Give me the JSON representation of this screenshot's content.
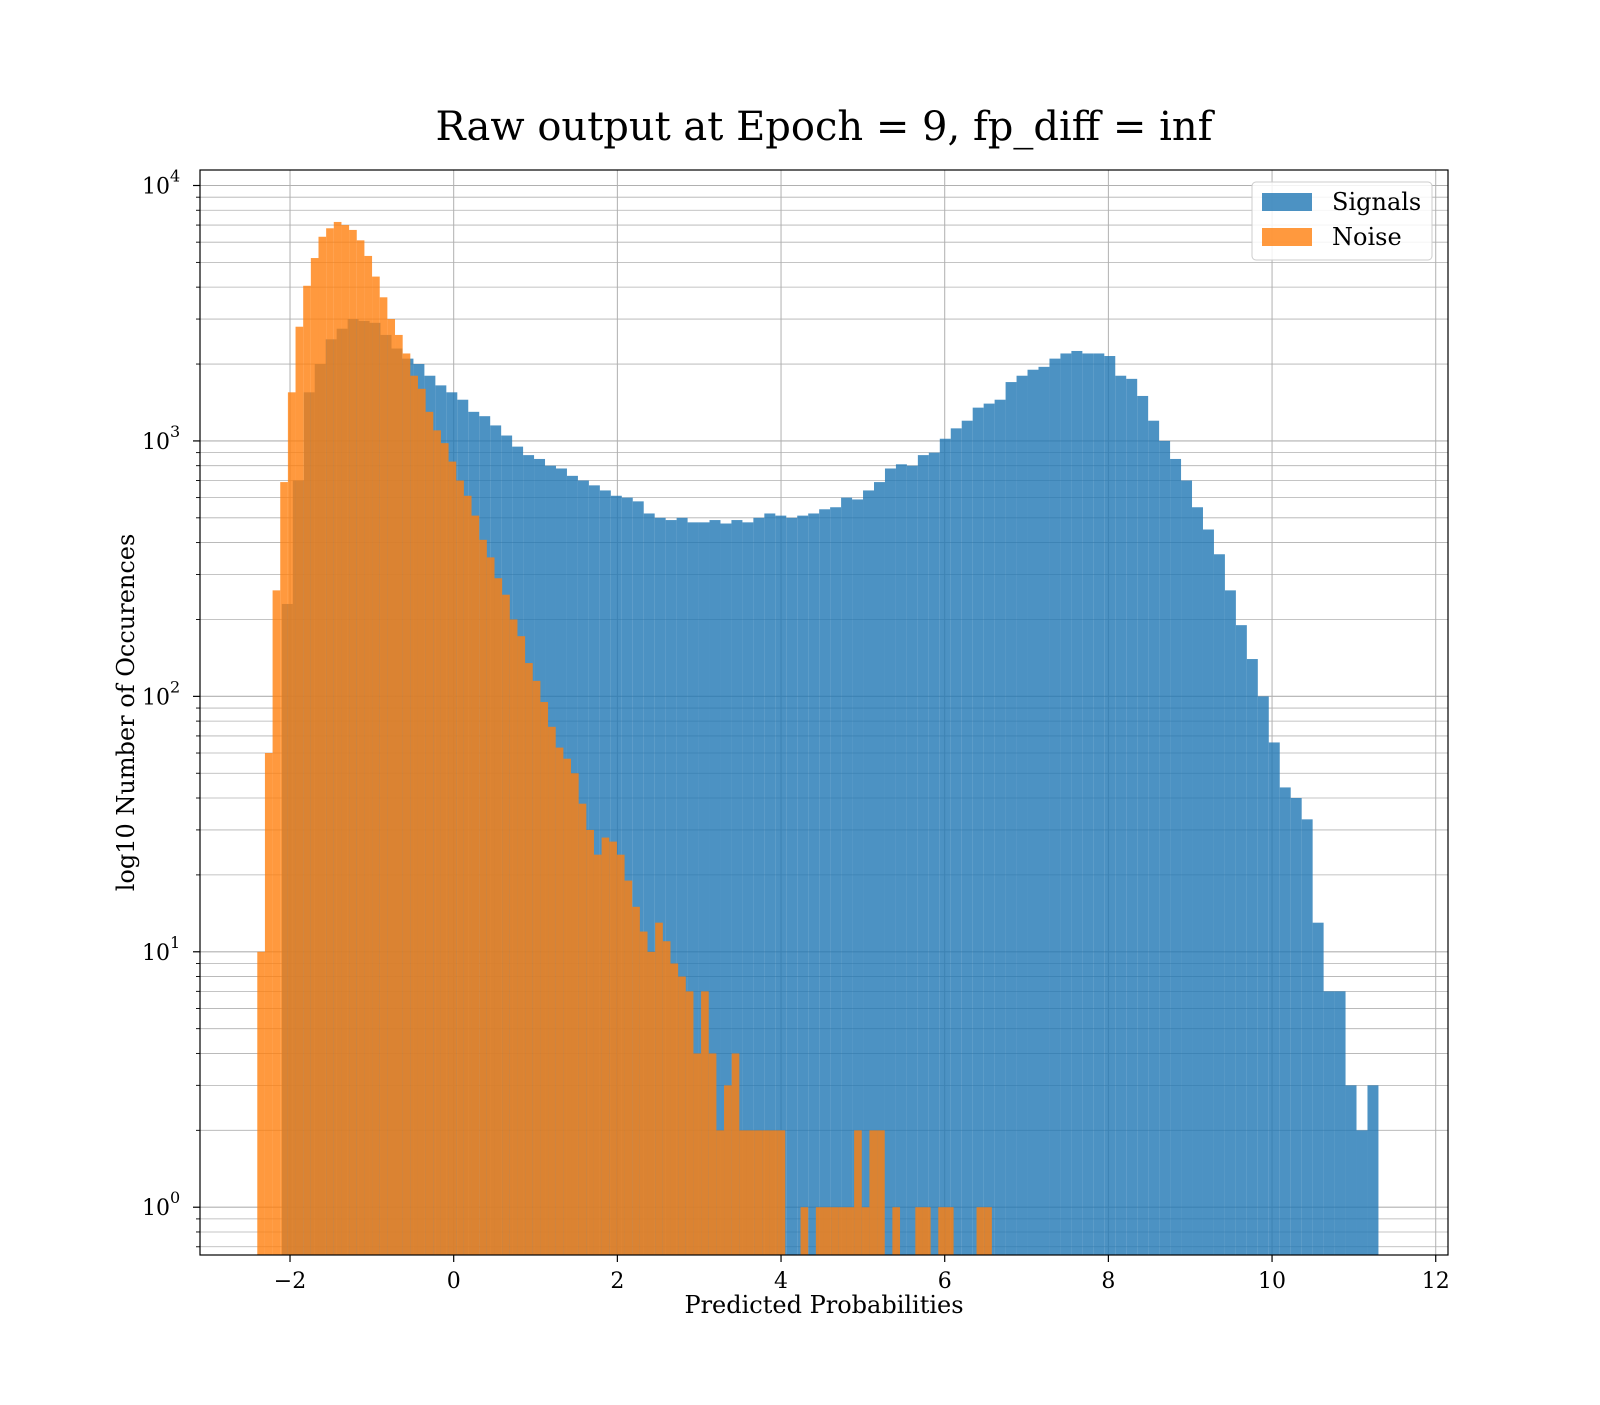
{
  "chart_data": {
    "type": "bar",
    "histogram": true,
    "title": "Raw output at Epoch = 9, fp_diff = inf",
    "xlabel": "Predicted Probabilities",
    "ylabel": "log10 Number of Occurences",
    "xlim": [
      -3.1,
      12.15
    ],
    "ylim": [
      0.65,
      11500
    ],
    "yscale": "log",
    "grid": true,
    "grid_minor_y": true,
    "legend_position": "top-right",
    "x_ticks": [
      "−2",
      "0",
      "2",
      "4",
      "6",
      "8",
      "10",
      "12"
    ],
    "x_tick_values": [
      -2,
      0,
      2,
      4,
      6,
      8,
      10,
      12
    ],
    "y_ticks": [
      {
        "base": "10",
        "exp": "0",
        "value": 1
      },
      {
        "base": "10",
        "exp": "1",
        "value": 10
      },
      {
        "base": "10",
        "exp": "2",
        "value": 100
      },
      {
        "base": "10",
        "exp": "3",
        "value": 1000
      },
      {
        "base": "10",
        "exp": "4",
        "value": 10000
      }
    ],
    "series": [
      {
        "name": "Signals",
        "color": "#1f77b4",
        "opacity": 0.8,
        "bin_start": -2.1,
        "bin_width": 0.134,
        "counts": [
          230,
          700,
          1550,
          2000,
          2500,
          2750,
          3000,
          2950,
          2900,
          2600,
          2300,
          2100,
          2000,
          1800,
          1650,
          1550,
          1450,
          1300,
          1250,
          1150,
          1050,
          950,
          880,
          850,
          800,
          780,
          730,
          700,
          670,
          640,
          610,
          600,
          580,
          520,
          500,
          490,
          500,
          480,
          480,
          490,
          475,
          490,
          480,
          500,
          520,
          510,
          500,
          510,
          520,
          540,
          550,
          600,
          590,
          640,
          690,
          780,
          810,
          800,
          880,
          900,
          1020,
          1120,
          1200,
          1350,
          1400,
          1450,
          1700,
          1800,
          1900,
          1950,
          2100,
          2200,
          2250,
          2200,
          2200,
          2150,
          1800,
          1750,
          1500,
          1200,
          1000,
          850,
          700,
          550,
          450,
          360,
          260,
          190,
          140,
          100,
          66,
          44,
          40,
          33,
          13,
          7,
          7,
          3,
          2,
          3
        ]
      },
      {
        "name": "Noise",
        "color": "#ff7f0e",
        "opacity": 0.8,
        "bin_start": -2.4,
        "bin_width": 0.0935,
        "counts": [
          10,
          60,
          260,
          690,
          1550,
          2800,
          4050,
          5200,
          6300,
          6800,
          7200,
          7000,
          6700,
          6100,
          5300,
          4400,
          3650,
          3000,
          2600,
          2200,
          1800,
          1600,
          1300,
          1100,
          980,
          830,
          700,
          610,
          510,
          410,
          350,
          290,
          250,
          200,
          172,
          135,
          115,
          95,
          76,
          63,
          57,
          50,
          38,
          30,
          24,
          28,
          27,
          24,
          19,
          15,
          12,
          10,
          13,
          11,
          9,
          8,
          7,
          4,
          7,
          4,
          2,
          3,
          4,
          2,
          2,
          2,
          2,
          2,
          2,
          0,
          0,
          1,
          0,
          1,
          1,
          1,
          1,
          1,
          2,
          1,
          2,
          2,
          0,
          1,
          0,
          0,
          1,
          1,
          0,
          1,
          1,
          0,
          0,
          0,
          1,
          1
        ]
      }
    ]
  }
}
